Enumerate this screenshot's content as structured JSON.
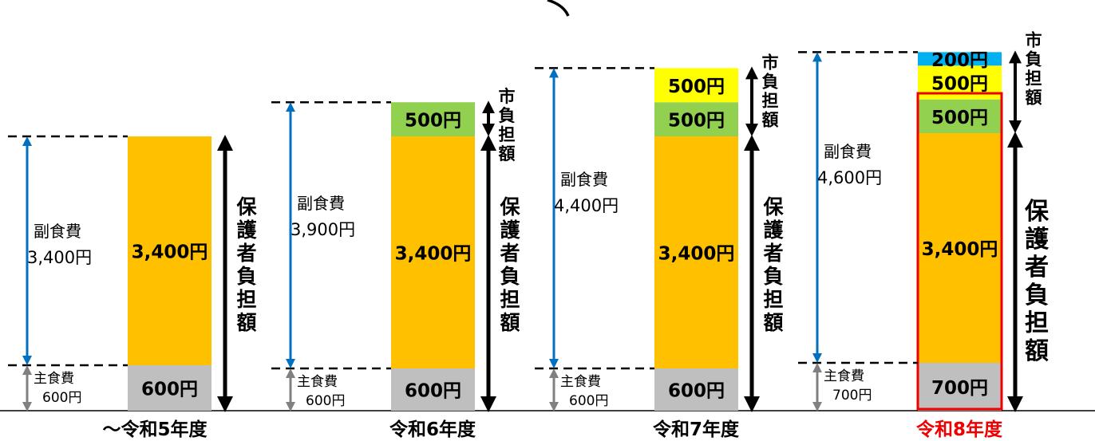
{
  "chart_data": {
    "type": "bar",
    "stacked": true,
    "unit": "円",
    "categories": [
      "～令和5年度",
      "令和6年度",
      "令和7年度",
      "令和8年度"
    ],
    "series": [
      {
        "values": [
          600,
          600,
          600,
          700
        ]
      },
      {
        "values": [
          3400,
          3400,
          3400,
          3400
        ]
      },
      {
        "values": [
          0,
          500,
          500,
          500
        ]
      },
      {
        "values": [
          0,
          0,
          500,
          500
        ]
      },
      {
        "values": [
          0,
          0,
          0,
          200
        ]
      }
    ],
    "segment_labels": [
      [
        "600円",
        "3,400円",
        "",
        "",
        ""
      ],
      [
        "600円",
        "3,400円",
        "500円",
        "",
        ""
      ],
      [
        "600円",
        "3,400円",
        "500円",
        "500円",
        ""
      ],
      [
        "700円",
        "3,400円",
        "500円",
        "500円",
        "200円"
      ]
    ],
    "main_food": [
      {
        "label": "主食費",
        "value": "600円"
      },
      {
        "label": "主食費",
        "value": "600円"
      },
      {
        "label": "主食費",
        "value": "600円"
      },
      {
        "label": "主食費",
        "value": "700円"
      }
    ],
    "side_food": [
      {
        "label": "副食費",
        "value": "3,400円"
      },
      {
        "label": "副食費",
        "value": "3,900円"
      },
      {
        "label": "副食費",
        "value": "4,400円"
      },
      {
        "label": "副食費",
        "value": "4,600円"
      }
    ],
    "bracket_labels": {
      "guardian": "保護者負担額",
      "city": "市負担額"
    },
    "highlight_category": "令和8年度",
    "colors": {
      "main_food": "#bfbfbf",
      "base_side": "#ffc000",
      "city_green": "#92d050",
      "city_yellow": "#ffff00",
      "city_blue": "#00b0f0",
      "highlight": "#ee0000",
      "arrow_blue": "#0070c0",
      "arrow_gray": "#808080",
      "text": "#000000"
    }
  }
}
